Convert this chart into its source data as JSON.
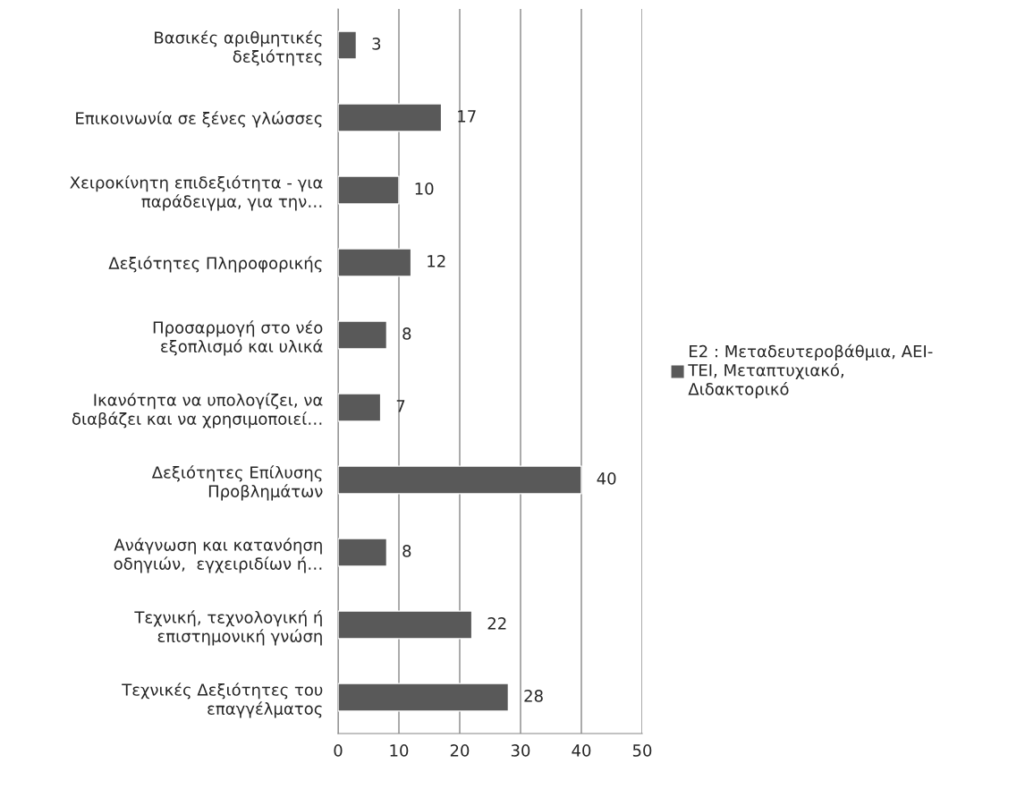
{
  "chart_data": {
    "type": "bar",
    "orientation": "horizontal",
    "categories": [
      "Βασικές αριθμητικές\nδεξιότητες",
      "Επικοινωνία σε ξένες γλώσσες",
      "Χειροκίνητη επιδεξιότητα - για\nπαράδειγμα, για την…",
      "Δεξιότητες Πληροφορικής",
      "Προσαρμογή στο νέο\nεξοπλισμό και υλικά",
      "Ικανότητα να υπολογίζει, να\nδιαβάζει και να χρησιμοποιεί…",
      "Δεξιότητες Επίλυσης\nΠροβλημάτων",
      "Ανάγνωση και κατανόηση\nοδηγιών,  εγχειριδίων ή…",
      "Τεχνική, τεχνολογική ή\nεπιστημονική γνώση",
      "Τεχνικές Δεξιότητες του\nεπαγγέλματος"
    ],
    "series": [
      {
        "name": "Ε2 : Μεταδευτεροβάθμια, ΑΕΙ-\nΤΕΙ, Μεταπτυχιακό,\nΔιδακτορικό",
        "color": "#595959",
        "values": [
          3,
          17,
          10,
          12,
          8,
          7,
          40,
          8,
          22,
          28
        ]
      }
    ],
    "xlim": [
      0,
      50
    ],
    "xticks": [
      0,
      10,
      20,
      30,
      40,
      50
    ],
    "grid": "x",
    "legend": "right",
    "data_labels": true
  }
}
